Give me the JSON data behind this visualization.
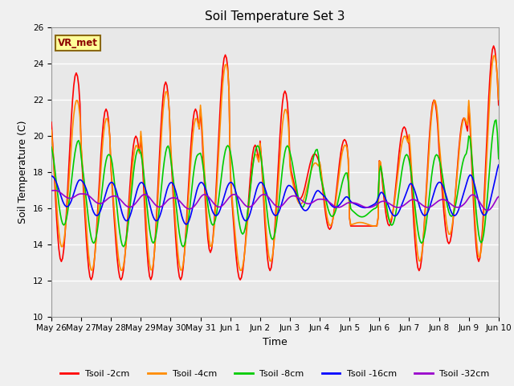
{
  "title": "Soil Temperature Set 3",
  "xlabel": "Time",
  "ylabel": "Soil Temperature (C)",
  "ylim": [
    10,
    26
  ],
  "yticks": [
    10,
    12,
    14,
    16,
    18,
    20,
    22,
    24,
    26
  ],
  "n_hours": 360,
  "xtick_labels": [
    "May 26",
    "May 27",
    "May 28",
    "May 29",
    "May 30",
    "May 31",
    "Jun 1",
    "Jun 2",
    "Jun 3",
    "Jun 4",
    "Jun 5",
    "Jun 6",
    "Jun 7",
    "Jun 8",
    "Jun 9",
    "Jun 10"
  ],
  "series_colors": {
    "Tsoil -2cm": "#FF0000",
    "Tsoil -4cm": "#FF8C00",
    "Tsoil -8cm": "#00CC00",
    "Tsoil -16cm": "#0000FF",
    "Tsoil -32cm": "#9900CC"
  },
  "annotation_text": "VR_met",
  "annotation_color": "#8B0000",
  "annotation_bgcolor": "#FFFF99",
  "annotation_edgecolor": "#8B6914",
  "plot_bgcolor": "#E8E8E8",
  "fig_bgcolor": "#F0F0F0",
  "grid_color": "#FFFFFF",
  "title_fontsize": 11,
  "axis_label_fontsize": 9,
  "tick_fontsize": 7.5,
  "legend_fontsize": 8,
  "line_width": 1.2
}
